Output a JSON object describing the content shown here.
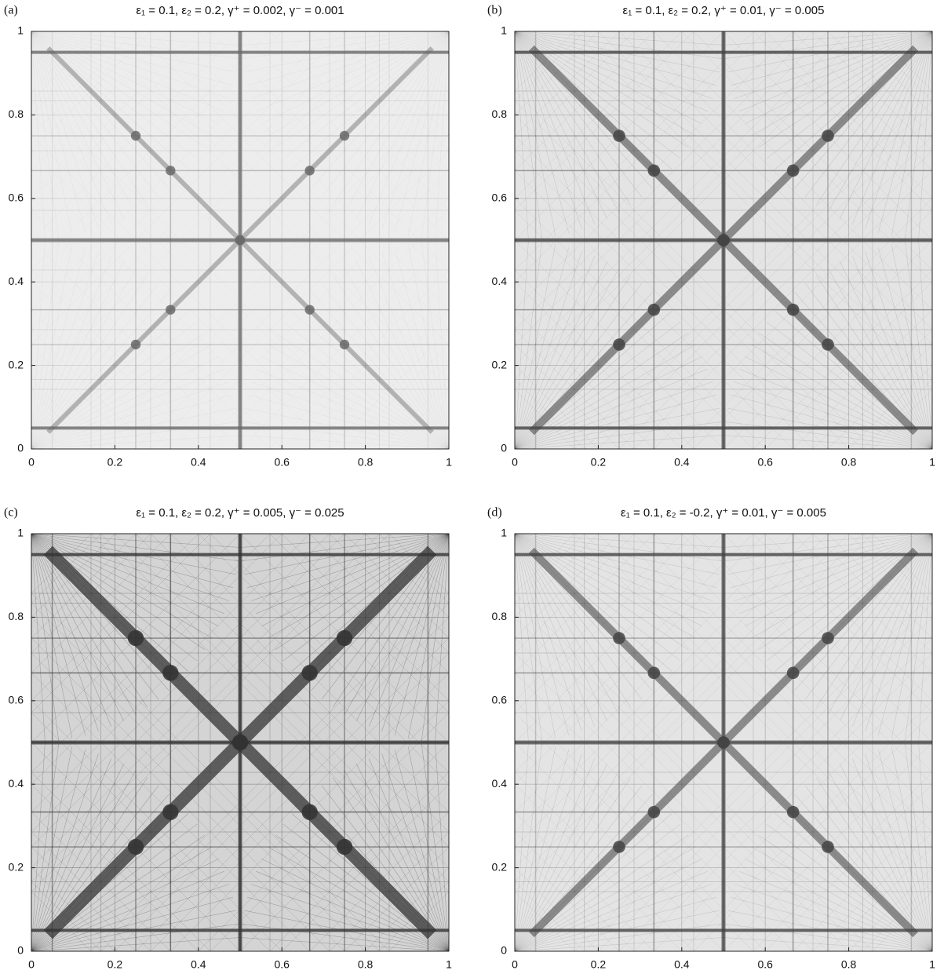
{
  "chart_data": [
    {
      "type": "density",
      "panel_label": "(a)",
      "title": "ε₁ = 0.1, ε₂ = 0.2, γ⁺ = 0.002, γ⁻ = 0.001",
      "color": "#6a6a6a",
      "xlim": [
        0,
        1
      ],
      "ylim": [
        0,
        1
      ],
      "xticks": [
        0,
        0.2,
        0.4,
        0.6,
        0.8,
        1
      ],
      "yticks": [
        0,
        0.2,
        0.4,
        0.6,
        0.8,
        1
      ]
    },
    {
      "type": "density",
      "panel_label": "(b)",
      "title": "ε₁ = 0.1, ε₂ = 0.2, γ⁺ = 0.01, γ⁻ = 0.005",
      "color": "#444444",
      "xlim": [
        0,
        1
      ],
      "ylim": [
        0,
        1
      ],
      "xticks": [
        0,
        0.2,
        0.4,
        0.6,
        0.8,
        1
      ],
      "yticks": [
        0,
        0.2,
        0.4,
        0.6,
        0.8,
        1
      ]
    },
    {
      "type": "density",
      "panel_label": "(c)",
      "title": "ε₁ = 0.1, ε₂ = 0.2, γ⁺ = 0.005, γ⁻ = 0.025",
      "color": "#333333",
      "xlim": [
        0,
        1
      ],
      "ylim": [
        0,
        1
      ],
      "xticks": [
        0,
        0.2,
        0.4,
        0.6,
        0.8,
        1
      ],
      "yticks": [
        0,
        0.2,
        0.4,
        0.6,
        0.8,
        1
      ]
    },
    {
      "type": "density",
      "panel_label": "(d)",
      "title": "ε₁ = 0.1, ε₂ = -0.2, γ⁺ = 0.01, γ⁻ = 0.005",
      "color": "#444444",
      "xlim": [
        0,
        1
      ],
      "ylim": [
        0,
        1
      ],
      "xticks": [
        0,
        0.2,
        0.4,
        0.6,
        0.8,
        1
      ],
      "yticks": [
        0,
        0.2,
        0.4,
        0.6,
        0.8,
        1
      ]
    }
  ]
}
